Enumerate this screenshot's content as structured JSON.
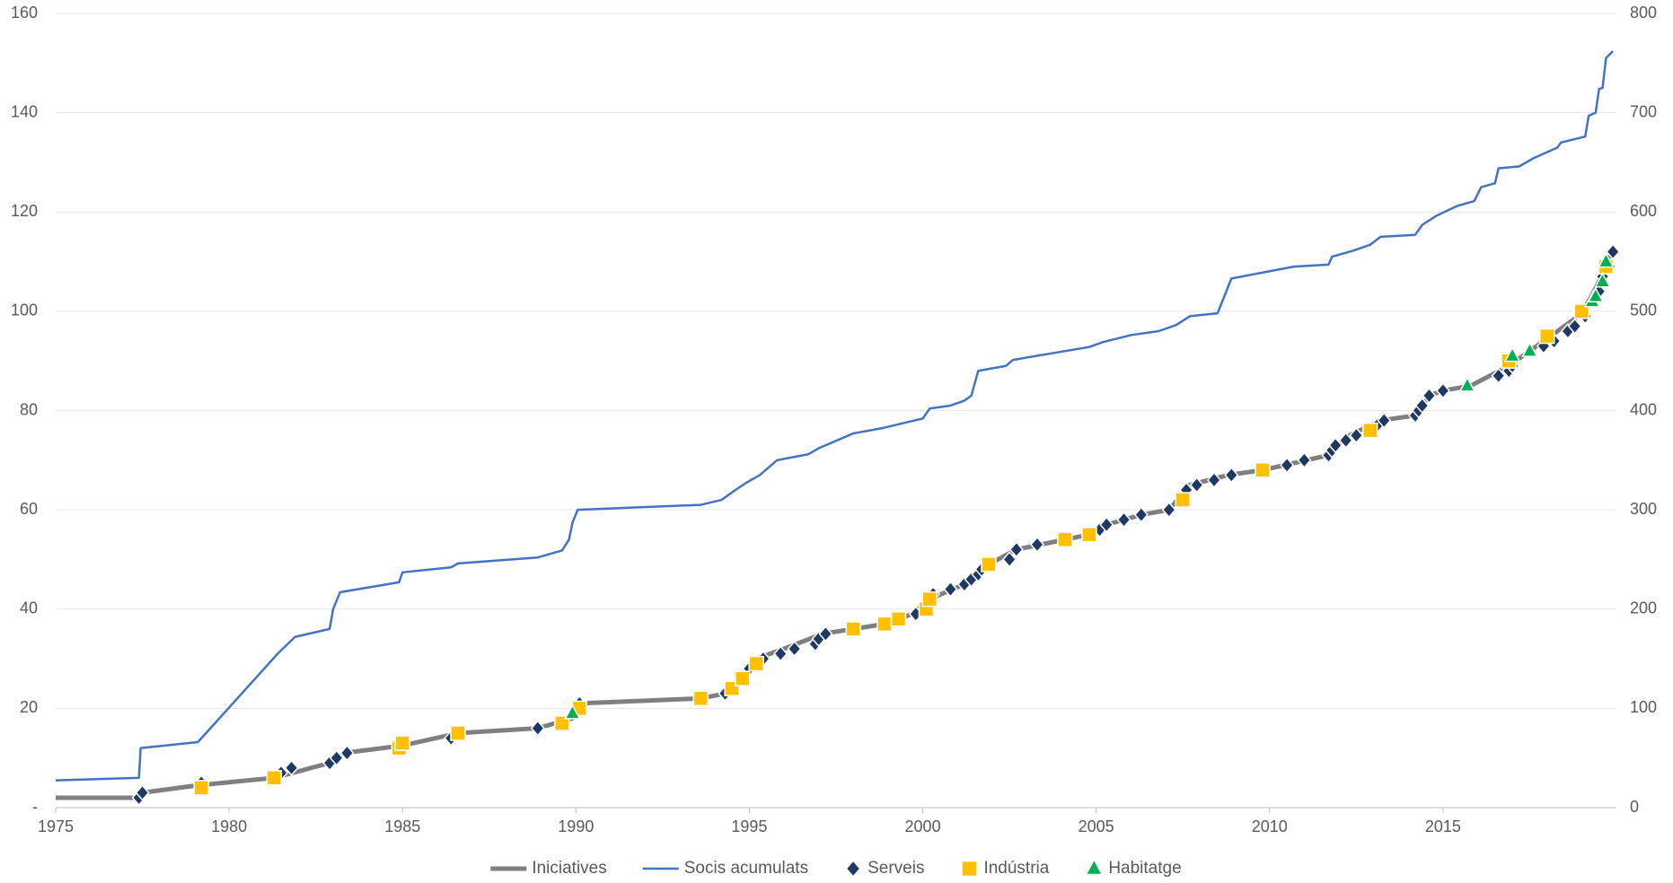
{
  "chart_data": {
    "type": "line",
    "xlim": [
      1975,
      2020
    ],
    "xticks": [
      1975,
      1980,
      1985,
      1990,
      1995,
      2000,
      2005,
      2010,
      2015
    ],
    "ylim": [
      0,
      160
    ],
    "yticks": [
      {
        "value": 0,
        "label": "-"
      },
      20,
      40,
      60,
      80,
      100,
      120,
      140,
      160
    ],
    "y2lim": [
      0,
      800
    ],
    "y2ticks": [
      0,
      100,
      200,
      300,
      400,
      500,
      600,
      700,
      800
    ],
    "grid": true,
    "legend": "bottom",
    "series": [
      {
        "name": "Iniciatives",
        "type": "line",
        "color": "#7f7f7f",
        "axis": "y",
        "x": [
          1975,
          1977.4,
          1977.5,
          1979.1,
          1981.3,
          1982.9,
          1983.3,
          1985,
          1986.6,
          1988.9,
          1989.9,
          1990.1,
          1993.6,
          1994.3,
          1994.7,
          1995.2,
          1996.0,
          1997.1,
          1998.0,
          1998.9,
          1999.7,
          2000.2,
          2001.2,
          2001.9,
          2002.7,
          2004.8,
          2005.3,
          2006.3,
          2007.1,
          2007.7,
          2008.8,
          2009.8,
          2011.7,
          2012.3,
          2013.2,
          2014.2,
          2014.6,
          2015.0,
          2015.8,
          2016.9,
          2017.5,
          2018.1,
          2018.9,
          2019.2,
          2019.5,
          2019.7,
          2019.9
        ],
        "values": [
          2,
          2,
          3,
          4.5,
          6,
          9,
          11,
          12.5,
          15,
          16,
          18,
          21,
          22,
          23,
          26,
          30,
          32,
          35,
          36,
          37,
          39,
          42,
          45,
          49,
          52,
          55,
          57,
          59,
          60,
          65,
          67,
          68,
          71,
          75,
          78,
          79,
          83,
          84,
          85,
          89,
          92,
          95,
          99,
          102,
          106,
          110,
          112
        ]
      },
      {
        "name": "Socis acumulats",
        "type": "line",
        "color": "#4472c4",
        "axis": "y2",
        "x": [
          1975,
          1977.4,
          1977.45,
          1979.1,
          1981.4,
          1981.9,
          1982.9,
          1983.0,
          1983.2,
          1984.9,
          1985.0,
          1986.4,
          1986.6,
          1988.9,
          1989.6,
          1989.8,
          1989.9,
          1990.05,
          1993.6,
          1994.2,
          1994.6,
          1994.9,
          1995.3,
          1995.8,
          1996.7,
          1997.0,
          1998.0,
          1998.8,
          2000.0,
          2000.2,
          2000.8,
          2001.2,
          2001.4,
          2001.6,
          2002.4,
          2002.6,
          2004.8,
          2005.2,
          2006.0,
          2006.8,
          2007.3,
          2007.7,
          2008.5,
          2008.9,
          2009.8,
          2010.7,
          2011.7,
          2011.8,
          2012.4,
          2012.9,
          2013.2,
          2014.2,
          2014.4,
          2014.8,
          2015.4,
          2015.9,
          2016.1,
          2016.5,
          2016.6,
          2017.2,
          2017.6,
          2018.3,
          2018.4,
          2019.1,
          2019.2,
          2019.4,
          2019.5,
          2019.6,
          2019.7,
          2019.9
        ],
        "values": [
          27.5,
          30,
          60,
          66,
          155,
          172,
          180,
          200,
          217,
          227,
          237,
          242,
          246,
          252,
          259,
          270,
          287,
          300,
          305,
          310,
          320,
          327,
          335,
          350,
          356,
          362,
          377,
          382,
          392,
          402,
          405,
          410,
          415,
          440,
          445,
          451,
          464,
          469,
          476,
          480,
          486,
          495,
          498,
          533,
          539,
          545,
          547,
          555,
          561,
          567,
          575,
          577,
          587,
          596,
          606,
          611,
          625,
          629,
          644,
          646,
          654,
          665,
          670,
          676,
          697,
          700,
          724,
          725,
          755,
          762
        ]
      },
      {
        "name": "Serveis",
        "type": "scatter",
        "marker": "diamond",
        "color": "#1f3864",
        "axis": "y",
        "x": [
          1977.4,
          1977.5,
          1979.2,
          1981.5,
          1981.8,
          1982.9,
          1983.1,
          1983.4,
          1986.4,
          1988.9,
          1990.1,
          1994.3,
          1995.0,
          1995.4,
          1995.9,
          1996.3,
          1996.9,
          1997.0,
          1997.2,
          1999.8,
          2000.3,
          2000.8,
          2001.2,
          2001.4,
          2001.6,
          2001.7,
          2002.5,
          2002.7,
          2003.3,
          2005.1,
          2005.3,
          2005.8,
          2006.3,
          2007.1,
          2007.6,
          2007.9,
          2008.4,
          2008.9,
          2010.5,
          2011.0,
          2011.7,
          2011.8,
          2011.9,
          2012.2,
          2012.5,
          2013.1,
          2013.3,
          2014.2,
          2014.3,
          2014.4,
          2014.6,
          2015.0,
          2016.6,
          2016.9,
          2017.0,
          2017.9,
          2018.2,
          2018.6,
          2018.8,
          2019.1,
          2019.5,
          2019.6,
          2019.8,
          2019.9
        ],
        "values": [
          2,
          3,
          5,
          7,
          8,
          9,
          10,
          11,
          14,
          16,
          21,
          23,
          28,
          30,
          31,
          32,
          33,
          34,
          35,
          39,
          43,
          44,
          45,
          46,
          47,
          48,
          50,
          52,
          53,
          56,
          57,
          58,
          59,
          60,
          64,
          65,
          66,
          67,
          69,
          70,
          71,
          72,
          73,
          74,
          75,
          77,
          78,
          79,
          80,
          81,
          83,
          84,
          87,
          88,
          89,
          93,
          94,
          96,
          97,
          99,
          104,
          107,
          109,
          112
        ]
      },
      {
        "name": "Indústria",
        "type": "scatter",
        "marker": "square",
        "color": "#ffc000",
        "axis": "y",
        "x": [
          1979.2,
          1981.3,
          1984.9,
          1985.0,
          1986.6,
          1989.6,
          1990.1,
          1993.6,
          1994.5,
          1994.8,
          1995.2,
          1998.0,
          1998.9,
          1999.3,
          2000.1,
          2000.2,
          2001.9,
          2004.1,
          2004.8,
          2007.5,
          2009.8,
          2012.9,
          2016.9,
          2018.0,
          2019.0,
          2019.7
        ],
        "values": [
          4,
          6,
          12,
          13,
          15,
          17,
          20,
          22,
          24,
          26,
          29,
          36,
          37,
          38,
          40,
          42,
          49,
          54,
          55,
          62,
          68,
          76,
          90,
          95,
          100,
          109
        ]
      },
      {
        "name": "Habitatge",
        "type": "scatter",
        "marker": "triangle",
        "color": "#00b050",
        "axis": "y",
        "x": [
          1989.9,
          2015.7,
          2017.0,
          2017.5,
          2019.3,
          2019.4,
          2019.6,
          2019.7
        ],
        "values": [
          19,
          85,
          91,
          92,
          102,
          103,
          106,
          110
        ]
      }
    ]
  }
}
